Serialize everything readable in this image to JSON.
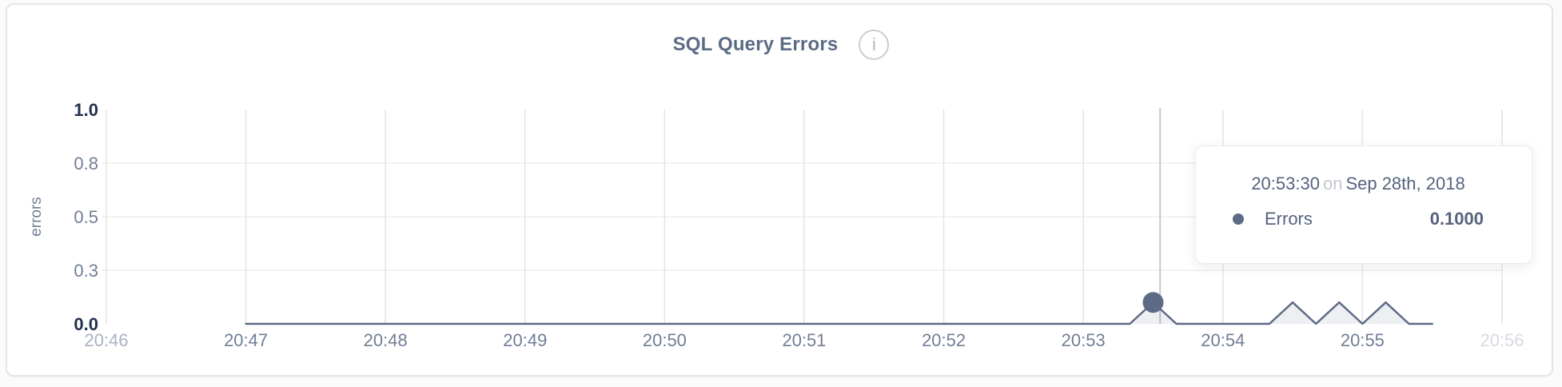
{
  "header": {
    "title": "SQL Query Errors",
    "info_glyph": "i"
  },
  "tooltip": {
    "time": "20:53:30",
    "conjunction": "on",
    "date": "Sep 28th, 2018",
    "series_label": "Errors",
    "value": "0.1000"
  },
  "palette": {
    "accent": "#5e6b86",
    "title_text": "#5b6b84",
    "axis_strong": "#23304e",
    "axis_normal": "#717e96",
    "axis_faint": "#a9b1c1",
    "axis_faintest": "#d6dae3",
    "grid_horizontal": "#ededed",
    "grid_vertical": "#e4e4e4",
    "crosshair": "#c7c7c7",
    "tooltip_text": "#56637e",
    "tooltip_muted": "#c3c8d1"
  },
  "chart_data": {
    "type": "area",
    "title": "SQL Query Errors",
    "xlabel": "",
    "ylabel": "errors",
    "ylim": [
      0,
      1
    ],
    "xlim_seconds": [
      0,
      600
    ],
    "grid": true,
    "legend_position": "none",
    "y_axis": {
      "title": "errors",
      "ticks": [
        {
          "v": 0,
          "label": "0.0",
          "tone": "strong"
        },
        {
          "v": 0.25,
          "label": "0.3",
          "tone": "normal"
        },
        {
          "v": 0.5,
          "label": "0.5",
          "tone": "normal"
        },
        {
          "v": 0.75,
          "label": "0.8",
          "tone": "normal"
        },
        {
          "v": 1,
          "label": "1.0",
          "tone": "strong"
        }
      ]
    },
    "x_axis": {
      "ticks": [
        {
          "t": 0,
          "label": "20:46",
          "tone": "faint"
        },
        {
          "t": 60,
          "label": "20:47",
          "tone": "normal"
        },
        {
          "t": 120,
          "label": "20:48",
          "tone": "normal"
        },
        {
          "t": 180,
          "label": "20:49",
          "tone": "normal"
        },
        {
          "t": 240,
          "label": "20:50",
          "tone": "normal"
        },
        {
          "t": 300,
          "label": "20:51",
          "tone": "normal"
        },
        {
          "t": 360,
          "label": "20:52",
          "tone": "normal"
        },
        {
          "t": 420,
          "label": "20:53",
          "tone": "normal"
        },
        {
          "t": 480,
          "label": "20:54",
          "tone": "normal"
        },
        {
          "t": 540,
          "label": "20:55",
          "tone": "normal"
        },
        {
          "t": 600,
          "label": "20:56",
          "tone": "faintest"
        }
      ]
    },
    "series": [
      {
        "name": "Errors",
        "color": "#5e6b86",
        "fill_color": "rgba(94,107,134,0.11)",
        "points": [
          [
            60,
            0
          ],
          [
            70,
            0
          ],
          [
            80,
            0
          ],
          [
            90,
            0
          ],
          [
            100,
            0
          ],
          [
            110,
            0
          ],
          [
            120,
            0
          ],
          [
            130,
            0
          ],
          [
            140,
            0
          ],
          [
            150,
            0
          ],
          [
            160,
            0
          ],
          [
            170,
            0
          ],
          [
            180,
            0
          ],
          [
            190,
            0
          ],
          [
            200,
            0
          ],
          [
            210,
            0
          ],
          [
            220,
            0
          ],
          [
            230,
            0
          ],
          [
            240,
            0
          ],
          [
            250,
            0
          ],
          [
            260,
            0
          ],
          [
            270,
            0
          ],
          [
            280,
            0
          ],
          [
            290,
            0
          ],
          [
            300,
            0
          ],
          [
            310,
            0
          ],
          [
            320,
            0
          ],
          [
            330,
            0
          ],
          [
            340,
            0
          ],
          [
            350,
            0
          ],
          [
            360,
            0
          ],
          [
            370,
            0
          ],
          [
            380,
            0
          ],
          [
            390,
            0
          ],
          [
            400,
            0
          ],
          [
            410,
            0
          ],
          [
            420,
            0
          ],
          [
            430,
            0
          ],
          [
            440,
            0
          ],
          [
            450,
            0.1
          ],
          [
            460,
            0
          ],
          [
            470,
            0
          ],
          [
            480,
            0
          ],
          [
            490,
            0
          ],
          [
            500,
            0
          ],
          [
            510,
            0.1
          ],
          [
            520,
            0
          ],
          [
            530,
            0.1
          ],
          [
            540,
            0
          ],
          [
            550,
            0.1
          ],
          [
            560,
            0
          ],
          [
            570,
            0
          ]
        ]
      }
    ],
    "hover": {
      "point_t": 450,
      "point_v": 0.1,
      "point_time_label": "20:53:30",
      "crosshair_t": 453
    }
  }
}
